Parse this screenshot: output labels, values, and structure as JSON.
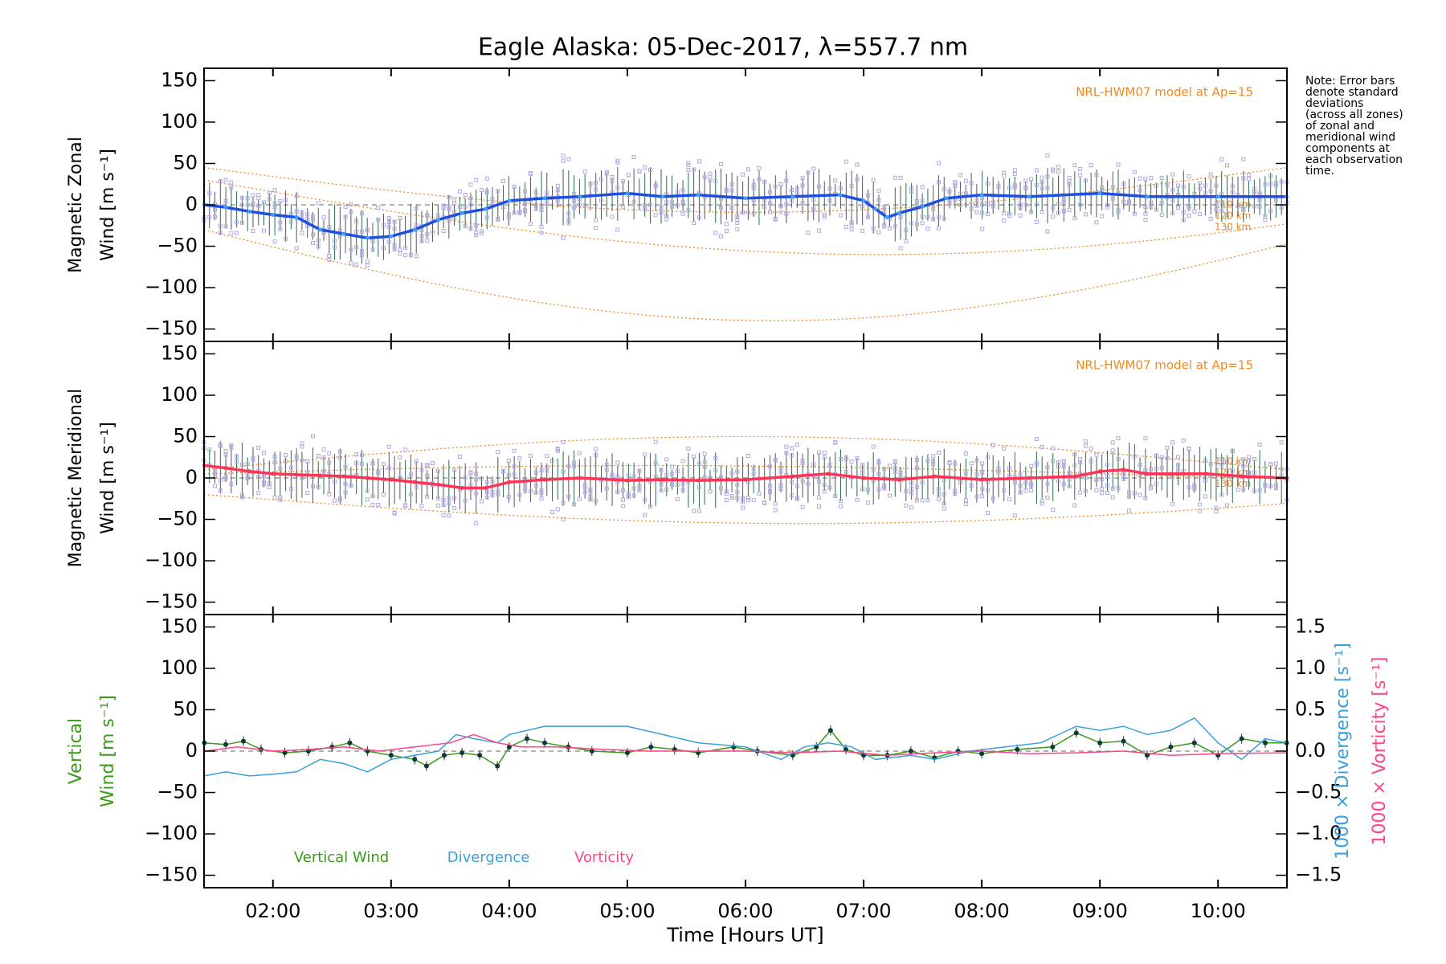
{
  "title": "Eagle Alaska: 05-Dec-2017, λ=557.7 nm",
  "note_lines": [
    "Note: Error bars",
    "denote standard",
    "deviations",
    "(across all zones)",
    "of zonal and",
    "meridional wind",
    "components at",
    "each observation",
    "time."
  ],
  "colors": {
    "zonal": "#1f4fe0",
    "zonal_light": "#3aa0ff",
    "meridional": "#ff3355",
    "vertical": "#3a9a1a",
    "vertical_marker": "#0b3a3a",
    "divergence": "#3aa0d8",
    "vorticity": "#ff4488",
    "model": "#f08a20",
    "scatter": "#b0a8e0",
    "errorbar": "#555555"
  },
  "chart_data": [
    {
      "type": "line",
      "panel": "zonal",
      "ylabel": [
        "Magnetic Zonal",
        "Wind [m s⁻¹]"
      ],
      "ylim": [
        -165,
        165
      ],
      "yticks": [
        -150,
        -100,
        -50,
        0,
        50,
        100,
        150
      ],
      "xlim": [
        "01:25",
        "10:35"
      ],
      "xticks": [
        "02:00",
        "03:00",
        "04:00",
        "05:00",
        "06:00",
        "07:00",
        "08:00",
        "09:00",
        "10:00"
      ],
      "model_label": "NRL-HWM07 model at Ap=15",
      "model_altitudes": [
        "110 km",
        "120 km",
        "130 km"
      ],
      "series": [
        {
          "values": [
            [
              1.42,
              0
            ],
            [
              1.6,
              -3
            ],
            [
              1.8,
              -8
            ],
            [
              2.0,
              -12
            ],
            [
              2.2,
              -15
            ],
            [
              2.4,
              -30
            ],
            [
              2.6,
              -35
            ],
            [
              2.8,
              -40
            ],
            [
              3.0,
              -38
            ],
            [
              3.2,
              -30
            ],
            [
              3.4,
              -18
            ],
            [
              3.6,
              -10
            ],
            [
              3.8,
              -5
            ],
            [
              4.0,
              5
            ],
            [
              4.3,
              8
            ],
            [
              4.6,
              10
            ],
            [
              5.0,
              14
            ],
            [
              5.3,
              10
            ],
            [
              5.6,
              12
            ],
            [
              6.0,
              8
            ],
            [
              6.4,
              10
            ],
            [
              6.8,
              12
            ],
            [
              7.0,
              5
            ],
            [
              7.1,
              -5
            ],
            [
              7.2,
              -15
            ],
            [
              7.3,
              -10
            ],
            [
              7.5,
              -2
            ],
            [
              7.7,
              8
            ],
            [
              8.0,
              12
            ],
            [
              8.4,
              10
            ],
            [
              9.0,
              14
            ],
            [
              9.4,
              10
            ],
            [
              10.0,
              10
            ],
            [
              10.58,
              10
            ]
          ]
        }
      ]
    },
    {
      "type": "line",
      "panel": "meridional",
      "ylabel": [
        "Magnetic Meridional",
        "Wind [m s⁻¹]"
      ],
      "ylim": [
        -165,
        165
      ],
      "yticks": [
        -150,
        -100,
        -50,
        0,
        50,
        100,
        150
      ],
      "model_label": "NRL-HWM07 model at Ap=15",
      "model_altitudes": [
        "110 km",
        "120 km",
        "130 km"
      ],
      "series": [
        {
          "values": [
            [
              1.42,
              15
            ],
            [
              1.6,
              12
            ],
            [
              1.8,
              8
            ],
            [
              2.0,
              5
            ],
            [
              2.2,
              4
            ],
            [
              2.4,
              3
            ],
            [
              2.6,
              2
            ],
            [
              2.8,
              0
            ],
            [
              3.0,
              -2
            ],
            [
              3.2,
              -5
            ],
            [
              3.4,
              -8
            ],
            [
              3.6,
              -12
            ],
            [
              3.8,
              -12
            ],
            [
              4.0,
              -5
            ],
            [
              4.3,
              -2
            ],
            [
              4.6,
              0
            ],
            [
              5.0,
              -3
            ],
            [
              5.3,
              -2
            ],
            [
              5.6,
              -3
            ],
            [
              6.0,
              -2
            ],
            [
              6.4,
              2
            ],
            [
              6.7,
              5
            ],
            [
              7.0,
              0
            ],
            [
              7.3,
              -2
            ],
            [
              7.6,
              2
            ],
            [
              8.0,
              -2
            ],
            [
              8.4,
              0
            ],
            [
              8.8,
              2
            ],
            [
              9.0,
              8
            ],
            [
              9.2,
              10
            ],
            [
              9.4,
              5
            ],
            [
              9.6,
              5
            ],
            [
              9.9,
              5
            ],
            [
              10.2,
              2
            ],
            [
              10.58,
              0
            ]
          ]
        }
      ]
    },
    {
      "type": "line",
      "panel": "vertical",
      "ylabel": [
        "Vertical",
        "Wind [m s⁻¹]"
      ],
      "ylim": [
        -165,
        165
      ],
      "yticks": [
        -150,
        -100,
        -50,
        0,
        50,
        100,
        150
      ],
      "y2label": "1000 × Divergence [s⁻¹]",
      "y3label": "1000 × Vorticity [s⁻¹]",
      "y2lim": [
        -1.65,
        1.65
      ],
      "y2ticks": [
        -1.5,
        -1.0,
        -0.5,
        0.0,
        0.5,
        1.0,
        1.5
      ],
      "y2tick_labels": [
        "−1.5",
        "−1.0",
        "−0.5",
        "0.0",
        "0.5",
        "1.0",
        "1.5"
      ],
      "legend": [
        "Vertical Wind",
        "Divergence",
        "Vorticity"
      ],
      "series": [
        {
          "name": "Vertical Wind",
          "values": [
            [
              1.42,
              10
            ],
            [
              1.6,
              8
            ],
            [
              1.75,
              12
            ],
            [
              1.9,
              2
            ],
            [
              2.1,
              -2
            ],
            [
              2.3,
              0
            ],
            [
              2.5,
              5
            ],
            [
              2.65,
              10
            ],
            [
              2.8,
              0
            ],
            [
              3.0,
              -5
            ],
            [
              3.2,
              -10
            ],
            [
              3.3,
              -18
            ],
            [
              3.45,
              -5
            ],
            [
              3.6,
              -2
            ],
            [
              3.75,
              -5
            ],
            [
              3.9,
              -18
            ],
            [
              4.0,
              5
            ],
            [
              4.15,
              15
            ],
            [
              4.3,
              10
            ],
            [
              4.5,
              5
            ],
            [
              4.7,
              0
            ],
            [
              5.0,
              -2
            ],
            [
              5.2,
              5
            ],
            [
              5.4,
              2
            ],
            [
              5.6,
              -2
            ],
            [
              5.9,
              5
            ],
            [
              6.1,
              0
            ],
            [
              6.4,
              -5
            ],
            [
              6.6,
              5
            ],
            [
              6.72,
              25
            ],
            [
              6.85,
              2
            ],
            [
              7.0,
              -5
            ],
            [
              7.2,
              -5
            ],
            [
              7.4,
              0
            ],
            [
              7.6,
              -8
            ],
            [
              7.8,
              0
            ],
            [
              8.0,
              -3
            ],
            [
              8.3,
              2
            ],
            [
              8.6,
              5
            ],
            [
              8.8,
              22
            ],
            [
              9.0,
              10
            ],
            [
              9.2,
              12
            ],
            [
              9.4,
              -5
            ],
            [
              9.6,
              5
            ],
            [
              9.8,
              10
            ],
            [
              10.0,
              -5
            ],
            [
              10.2,
              15
            ],
            [
              10.4,
              10
            ],
            [
              10.58,
              10
            ]
          ]
        },
        {
          "name": "Divergence",
          "values": [
            [
              1.42,
              -0.3
            ],
            [
              1.6,
              -0.25
            ],
            [
              1.8,
              -0.3
            ],
            [
              2.0,
              -0.28
            ],
            [
              2.2,
              -0.25
            ],
            [
              2.4,
              -0.1
            ],
            [
              2.6,
              -0.15
            ],
            [
              2.8,
              -0.25
            ],
            [
              3.0,
              -0.1
            ],
            [
              3.2,
              -0.05
            ],
            [
              3.4,
              0.0
            ],
            [
              3.55,
              0.2
            ],
            [
              3.7,
              0.15
            ],
            [
              3.9,
              0.1
            ],
            [
              4.0,
              0.2
            ],
            [
              4.3,
              0.3
            ],
            [
              4.6,
              0.3
            ],
            [
              5.0,
              0.3
            ],
            [
              5.3,
              0.2
            ],
            [
              5.6,
              0.1
            ],
            [
              6.0,
              0.05
            ],
            [
              6.3,
              -0.1
            ],
            [
              6.5,
              0.05
            ],
            [
              6.7,
              0.1
            ],
            [
              6.9,
              0.05
            ],
            [
              7.1,
              -0.1
            ],
            [
              7.4,
              -0.05
            ],
            [
              7.6,
              -0.1
            ],
            [
              7.9,
              0.0
            ],
            [
              8.2,
              0.05
            ],
            [
              8.5,
              0.1
            ],
            [
              8.8,
              0.3
            ],
            [
              9.0,
              0.25
            ],
            [
              9.2,
              0.3
            ],
            [
              9.4,
              0.2
            ],
            [
              9.6,
              0.25
            ],
            [
              9.8,
              0.4
            ],
            [
              10.0,
              0.1
            ],
            [
              10.2,
              -0.1
            ],
            [
              10.4,
              0.15
            ],
            [
              10.58,
              0.1
            ]
          ]
        },
        {
          "name": "Vorticity",
          "values": [
            [
              1.42,
              0.0
            ],
            [
              1.7,
              0.05
            ],
            [
              2.0,
              0.0
            ],
            [
              2.3,
              0.02
            ],
            [
              2.6,
              0.05
            ],
            [
              2.9,
              0.0
            ],
            [
              3.2,
              0.05
            ],
            [
              3.5,
              0.1
            ],
            [
              3.7,
              0.2
            ],
            [
              3.9,
              0.1
            ],
            [
              4.1,
              0.05
            ],
            [
              4.4,
              0.05
            ],
            [
              4.8,
              0.02
            ],
            [
              5.2,
              0.0
            ],
            [
              5.6,
              0.0
            ],
            [
              6.0,
              0.0
            ],
            [
              6.4,
              -0.02
            ],
            [
              6.8,
              0.0
            ],
            [
              7.2,
              -0.05
            ],
            [
              7.6,
              -0.02
            ],
            [
              8.0,
              0.0
            ],
            [
              8.4,
              -0.03
            ],
            [
              8.8,
              -0.02
            ],
            [
              9.2,
              0.0
            ],
            [
              9.6,
              -0.05
            ],
            [
              10.0,
              -0.03
            ],
            [
              10.58,
              -0.02
            ]
          ]
        }
      ]
    }
  ]
}
